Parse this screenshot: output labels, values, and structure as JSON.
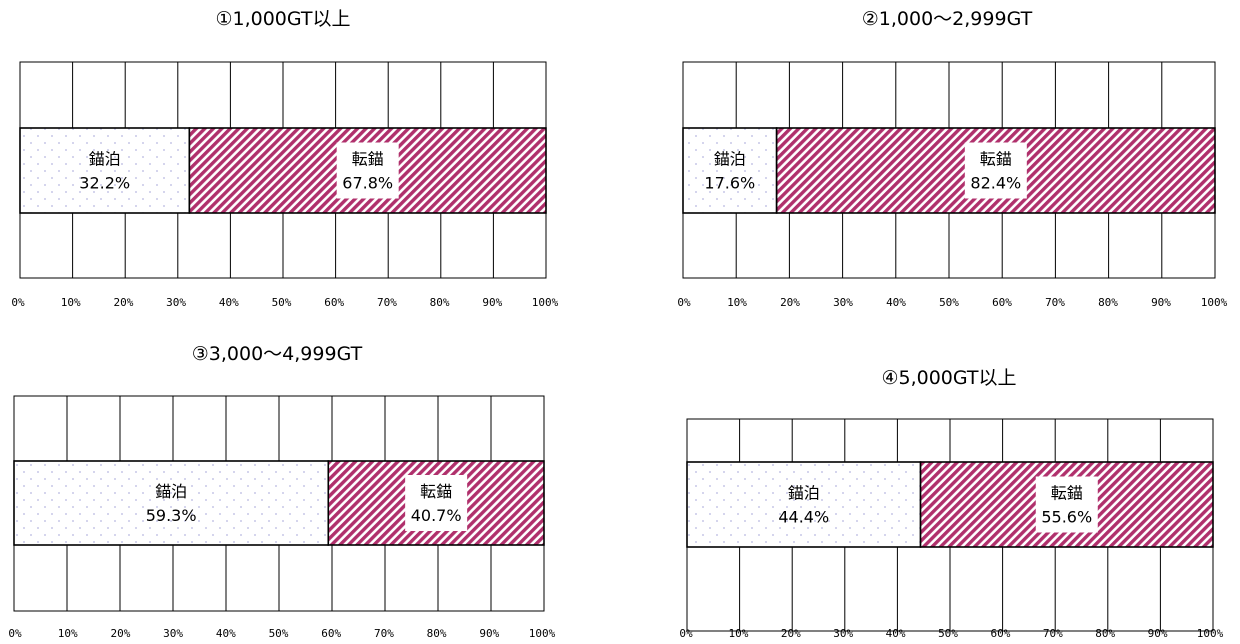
{
  "colors": {
    "anchorage_fill": "#ffffff",
    "anchorage_dots": "#b8b8e0",
    "dragging_stripe": "#b0306c",
    "grid": "#000000"
  },
  "chart_data": [
    {
      "type": "bar",
      "orientation": "horizontal",
      "stacked": true,
      "title": "①1,000GT以上",
      "xlim": [
        0,
        100
      ],
      "ticks": [
        "0%",
        "10%",
        "20%",
        "30%",
        "40%",
        "50%",
        "60%",
        "70%",
        "80%",
        "90%",
        "100%"
      ],
      "grid": true,
      "series": [
        {
          "name": "錨泊",
          "values": [
            32.2
          ],
          "label": "32.2%",
          "pattern": "dots"
        },
        {
          "name": "転錨",
          "values": [
            67.8
          ],
          "label": "67.8%",
          "pattern": "stripes"
        }
      ]
    },
    {
      "type": "bar",
      "orientation": "horizontal",
      "stacked": true,
      "title": "②1,000～2,999GT",
      "xlim": [
        0,
        100
      ],
      "ticks": [
        "0%",
        "10%",
        "20%",
        "30%",
        "40%",
        "50%",
        "60%",
        "70%",
        "80%",
        "90%",
        "100%"
      ],
      "grid": true,
      "series": [
        {
          "name": "錨泊",
          "values": [
            17.6
          ],
          "label": "17.6%",
          "pattern": "dots"
        },
        {
          "name": "転錨",
          "values": [
            82.4
          ],
          "label": "82.4%",
          "pattern": "stripes"
        }
      ]
    },
    {
      "type": "bar",
      "orientation": "horizontal",
      "stacked": true,
      "title": "③3,000～4,999GT",
      "xlim": [
        0,
        100
      ],
      "ticks": [
        "0%",
        "10%",
        "20%",
        "30%",
        "40%",
        "50%",
        "60%",
        "70%",
        "80%",
        "90%",
        "100%"
      ],
      "grid": true,
      "series": [
        {
          "name": "錨泊",
          "values": [
            59.3
          ],
          "label": "59.3%",
          "pattern": "dots"
        },
        {
          "name": "転錨",
          "values": [
            40.7
          ],
          "label": "40.7%",
          "pattern": "stripes"
        }
      ]
    },
    {
      "type": "bar",
      "orientation": "horizontal",
      "stacked": true,
      "title": "④5,000GT以上",
      "xlim": [
        0,
        100
      ],
      "ticks": [
        "0%",
        "10%",
        "20%",
        "30%",
        "40%",
        "50%",
        "60%",
        "70%",
        "80%",
        "90%",
        "100%"
      ],
      "grid": true,
      "series": [
        {
          "name": "錨泊",
          "values": [
            44.4
          ],
          "label": "44.4%",
          "pattern": "dots"
        },
        {
          "name": "転錨",
          "values": [
            55.6
          ],
          "label": "55.6%",
          "pattern": "stripes"
        }
      ]
    }
  ]
}
